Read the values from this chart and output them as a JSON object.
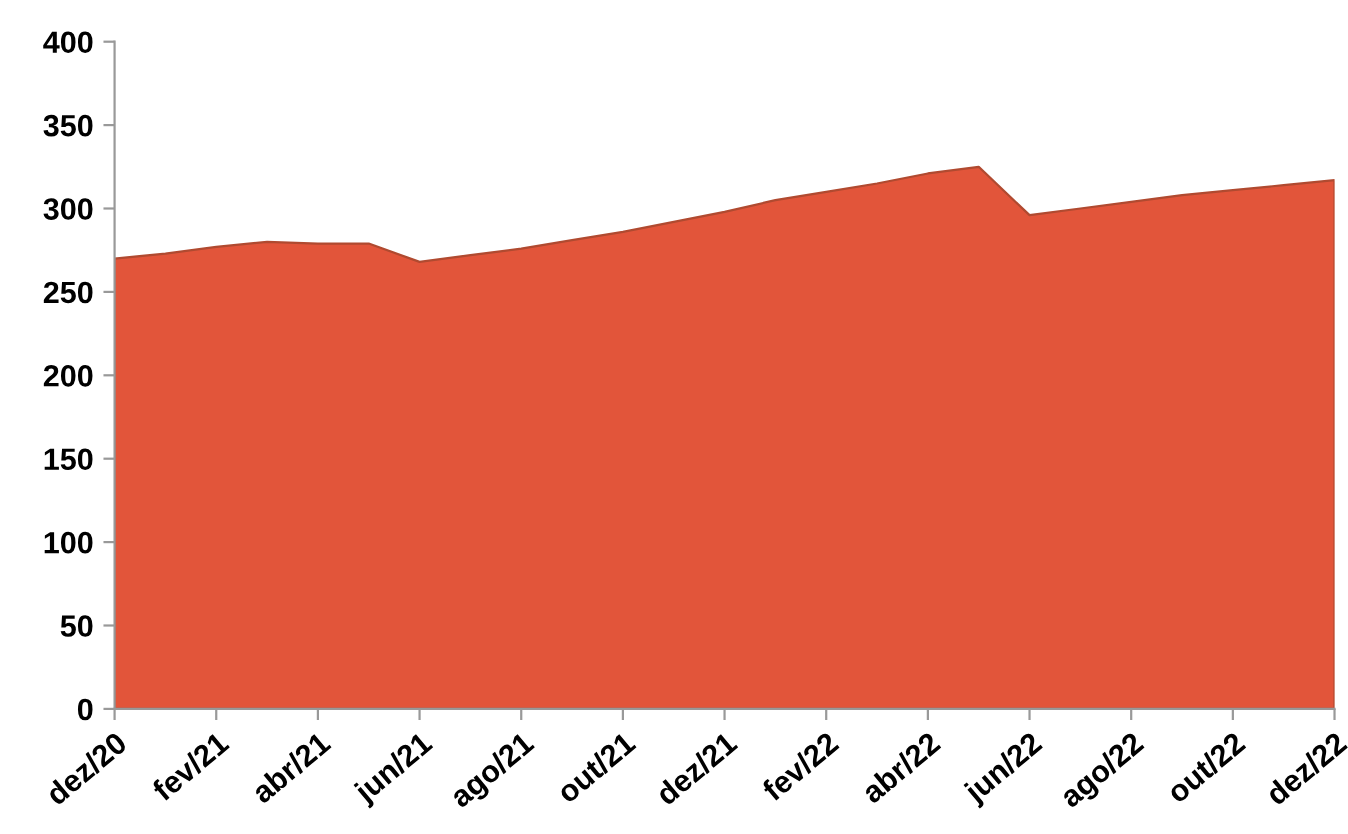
{
  "chart_data": {
    "type": "area",
    "categories": [
      "dez/20",
      null,
      "fev/21",
      null,
      "abr/21",
      null,
      "jun/21",
      null,
      "ago/21",
      null,
      "out/21",
      null,
      "dez/21",
      null,
      "fev/22",
      null,
      "abr/22",
      null,
      "jun/22",
      null,
      "ago/22",
      null,
      "out/22",
      null,
      "dez/22"
    ],
    "series": [
      {
        "color": "#e2553a",
        "values": [
          270,
          273,
          277,
          280,
          279,
          279,
          268,
          272,
          276,
          281,
          286,
          292,
          298,
          305,
          310,
          315,
          321,
          325,
          296,
          300,
          304,
          308,
          311,
          314,
          317
        ]
      }
    ],
    "ylim": [
      0,
      400
    ],
    "yticks": [
      0,
      50,
      100,
      150,
      200,
      250,
      300,
      350,
      400
    ],
    "grid": false,
    "legend": false
  }
}
